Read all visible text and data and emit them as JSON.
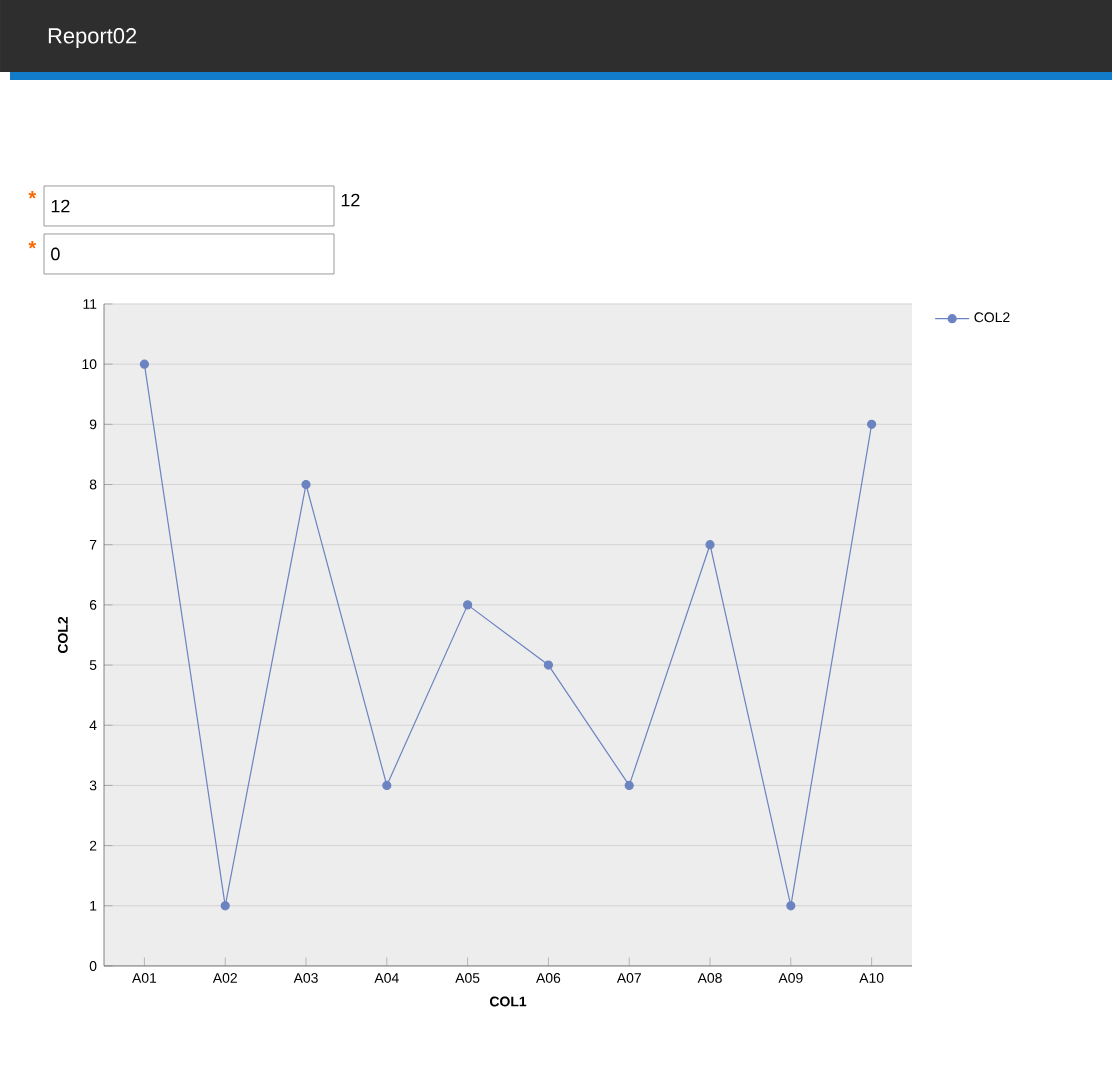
{
  "chart_data": {
    "type": "line",
    "title": "Report02",
    "xlabel": "COL1",
    "ylabel": "COL2",
    "categories": [
      "A01",
      "A02",
      "A03",
      "A04",
      "A05",
      "A06",
      "A07",
      "A08",
      "A09",
      "A10"
    ],
    "series": [
      {
        "name": "COL2",
        "color": "#6b83c0",
        "values": [
          10,
          1,
          8,
          3,
          6,
          5,
          3,
          7,
          1,
          9
        ]
      }
    ],
    "ylim": [
      0,
      11
    ],
    "yticks": [
      0,
      1,
      2,
      3,
      4,
      5,
      6,
      7,
      8,
      9,
      10,
      11
    ],
    "grid": "y",
    "legend": "top right",
    "marker": "circle",
    "line_style": "solid",
    "annotations": [
      "*",
      "12",
      "12",
      "*",
      "0"
    ]
  }
}
